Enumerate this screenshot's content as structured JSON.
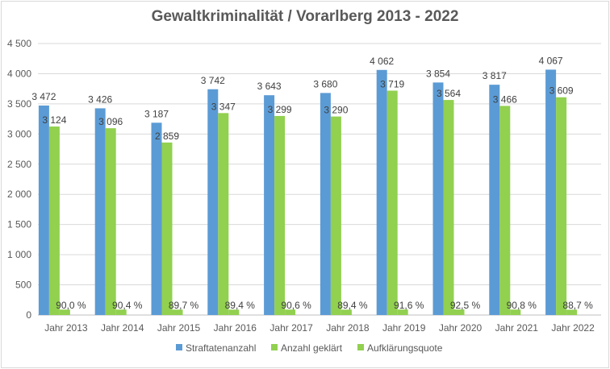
{
  "chart_data": {
    "type": "bar",
    "title": "Gewaltkriminalität / Vorarlberg 2013 - 2022",
    "categories": [
      "Jahr 2013",
      "Jahr 2014",
      "Jahr 2015",
      "Jahr 2016",
      "Jahr 2017",
      "Jahr 2018",
      "Jahr 2019",
      "Jahr 2020",
      "Jahr 2021",
      "Jahr 2022"
    ],
    "series": [
      {
        "name": "Straftatenanzahl",
        "color": "#5b9bd5",
        "values": [
          3472,
          3426,
          3187,
          3742,
          3643,
          3680,
          4062,
          3854,
          3817,
          4067
        ],
        "labels": [
          "3 472",
          "3 426",
          "3 187",
          "3 742",
          "3 643",
          "3 680",
          "4 062",
          "3 854",
          "3 817",
          "4 067"
        ]
      },
      {
        "name": "Anzahl geklärt",
        "color": "#92d050",
        "values": [
          3124,
          3096,
          2859,
          3347,
          3299,
          3290,
          3719,
          3564,
          3466,
          3609
        ],
        "labels": [
          "3 124",
          "3 096",
          "2 859",
          "3 347",
          "3 299",
          "3 290",
          "3 719",
          "3 564",
          "3 466",
          "3 609"
        ]
      },
      {
        "name": "Aufklärungsquote",
        "color": "#92d050",
        "values": [
          90.0,
          90.4,
          89.7,
          89.4,
          90.6,
          89.4,
          91.6,
          92.5,
          90.8,
          88.7
        ],
        "labels": [
          "90,0 %",
          "90,4 %",
          "89,7 %",
          "89,4 %",
          "90,6 %",
          "89,4 %",
          "91,6 %",
          "92,5 %",
          "90,8 %",
          "88,7 %"
        ]
      }
    ],
    "ylim": [
      0,
      4500
    ],
    "yticks": [
      0,
      500,
      1000,
      1500,
      2000,
      2500,
      3000,
      3500,
      4000,
      4500
    ],
    "ytick_labels": [
      "0",
      "500",
      "1 000",
      "1 500",
      "2 000",
      "2 500",
      "3 000",
      "3 500",
      "4 000",
      "4 500"
    ],
    "grid": true,
    "legend": "bottom"
  }
}
